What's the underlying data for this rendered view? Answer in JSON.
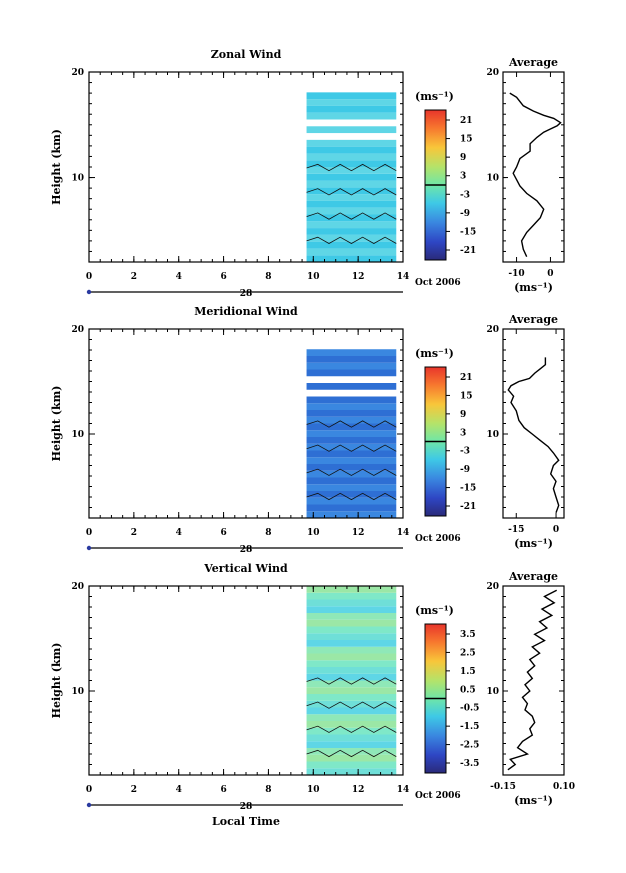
{
  "chart_data": [
    {
      "type": "heatmap",
      "title": "Zonal Wind",
      "ylabel": "Height (km)",
      "ylim": [
        2,
        20
      ],
      "xlim": [
        0,
        14
      ],
      "x_ticks": [
        "0",
        "2",
        "4",
        "6",
        "8",
        "10",
        "12",
        "14"
      ],
      "y_ticks": [
        "10",
        "20"
      ],
      "date_day": "28",
      "date_label": "Oct 2006",
      "data_x_range": [
        9.7,
        13.7
      ],
      "colorbar": {
        "unit": "(ms⁻¹)",
        "ticks": [
          "21",
          "15",
          "9",
          "3",
          "-3",
          "-9",
          "-15",
          "-21"
        ]
      },
      "profile": {
        "title": "Average",
        "xlabel": "(ms⁻¹)",
        "x_ticks": [
          "-10",
          "0"
        ],
        "xlim": [
          -14,
          4
        ],
        "ylim": [
          2,
          20
        ],
        "y_ticks": [
          "10",
          "20"
        ],
        "points": [
          [
            -7,
            2.5
          ],
          [
            -8,
            3.2
          ],
          [
            -8.5,
            4.0
          ],
          [
            -7,
            4.8
          ],
          [
            -5,
            5.5
          ],
          [
            -3,
            6.2
          ],
          [
            -2,
            7.0
          ],
          [
            -4,
            7.8
          ],
          [
            -7,
            8.5
          ],
          [
            -9,
            9.2
          ],
          [
            -10,
            9.8
          ],
          [
            -11,
            10.4
          ],
          [
            -10,
            11.0
          ],
          [
            -9,
            11.8
          ],
          [
            -6,
            12.5
          ],
          [
            -6,
            13.2
          ],
          [
            -4,
            13.8
          ],
          [
            -2,
            14.3
          ],
          [
            0,
            14.6
          ],
          [
            2,
            14.9
          ],
          [
            3,
            15.2
          ],
          [
            1,
            15.6
          ],
          [
            -2,
            15.9
          ],
          [
            -5,
            16.3
          ],
          [
            -8,
            16.8
          ],
          [
            -10,
            17.6
          ],
          [
            -12,
            18.0
          ]
        ]
      }
    },
    {
      "type": "heatmap",
      "title": "Meridional Wind",
      "ylabel": "Height (km)",
      "ylim": [
        2,
        20
      ],
      "xlim": [
        0,
        14
      ],
      "x_ticks": [
        "0",
        "2",
        "4",
        "6",
        "8",
        "10",
        "12",
        "14"
      ],
      "y_ticks": [
        "10",
        "20"
      ],
      "date_day": "28",
      "date_label": "Oct 2006",
      "data_x_range": [
        9.7,
        13.7
      ],
      "colorbar": {
        "unit": "(ms⁻¹)",
        "ticks": [
          "21",
          "15",
          "9",
          "3",
          "-3",
          "-9",
          "-15",
          "-21"
        ]
      },
      "profile": {
        "title": "Average",
        "xlabel": "(ms⁻¹)",
        "x_ticks": [
          "-15",
          "0"
        ],
        "xlim": [
          -20,
          3
        ],
        "ylim": [
          2,
          20
        ],
        "y_ticks": [
          "10",
          "20"
        ],
        "points": [
          [
            0,
            2.5
          ],
          [
            1,
            3.2
          ],
          [
            0,
            4.0
          ],
          [
            -1,
            4.8
          ],
          [
            0,
            5.5
          ],
          [
            -2,
            6.2
          ],
          [
            -1,
            7.0
          ],
          [
            1,
            7.5
          ],
          [
            -1,
            8.2
          ],
          [
            -3,
            8.8
          ],
          [
            -6,
            9.4
          ],
          [
            -9,
            10.0
          ],
          [
            -12,
            10.6
          ],
          [
            -14,
            11.3
          ],
          [
            -15,
            12.2
          ],
          [
            -17,
            13.0
          ],
          [
            -16,
            13.6
          ],
          [
            -18,
            14.2
          ],
          [
            -17,
            14.6
          ],
          [
            -14,
            15.0
          ],
          [
            -10,
            15.3
          ],
          [
            -8,
            15.8
          ],
          [
            -6,
            16.2
          ],
          [
            -4,
            16.6
          ],
          [
            -4,
            17.3
          ]
        ]
      }
    },
    {
      "type": "heatmap",
      "title": "Vertical Wind",
      "ylabel": "Height (km)",
      "xlabel": "Local Time",
      "ylim": [
        2,
        20
      ],
      "xlim": [
        0,
        14
      ],
      "x_ticks": [
        "0",
        "2",
        "4",
        "6",
        "8",
        "10",
        "12",
        "14"
      ],
      "y_ticks": [
        "10",
        "20"
      ],
      "date_day": "28",
      "date_label": "Oct 2006",
      "data_x_range": [
        9.7,
        13.7
      ],
      "colorbar": {
        "unit": "(ms⁻¹)",
        "ticks": [
          "3.5",
          "2.5",
          "1.5",
          "0.5",
          "-0.5",
          "-1.5",
          "-2.5",
          "-3.5"
        ]
      },
      "profile": {
        "title": "Average",
        "xlabel": "(ms⁻¹)",
        "x_ticks": [
          "-0.15",
          "0.10"
        ],
        "xlim": [
          -0.15,
          0.1
        ],
        "ylim": [
          2,
          20
        ],
        "y_ticks": [
          "10",
          "20"
        ],
        "points": [
          [
            -0.13,
            2.5
          ],
          [
            -0.1,
            3.0
          ],
          [
            -0.12,
            3.5
          ],
          [
            -0.05,
            4.0
          ],
          [
            -0.09,
            4.6
          ],
          [
            -0.07,
            5.2
          ],
          [
            -0.03,
            5.8
          ],
          [
            -0.04,
            6.4
          ],
          [
            -0.02,
            7.0
          ],
          [
            -0.03,
            7.6
          ],
          [
            -0.06,
            8.2
          ],
          [
            -0.05,
            8.8
          ],
          [
            -0.07,
            9.4
          ],
          [
            -0.04,
            10.0
          ],
          [
            -0.06,
            10.6
          ],
          [
            -0.03,
            11.2
          ],
          [
            -0.05,
            11.8
          ],
          [
            -0.02,
            12.4
          ],
          [
            -0.04,
            13.0
          ],
          [
            0.0,
            13.6
          ],
          [
            -0.03,
            14.2
          ],
          [
            0.02,
            14.8
          ],
          [
            -0.02,
            15.4
          ],
          [
            0.03,
            16.0
          ],
          [
            0.0,
            16.6
          ],
          [
            0.05,
            17.2
          ],
          [
            0.01,
            17.8
          ],
          [
            0.06,
            18.4
          ],
          [
            0.02,
            19.0
          ],
          [
            0.07,
            19.6
          ]
        ]
      }
    }
  ]
}
